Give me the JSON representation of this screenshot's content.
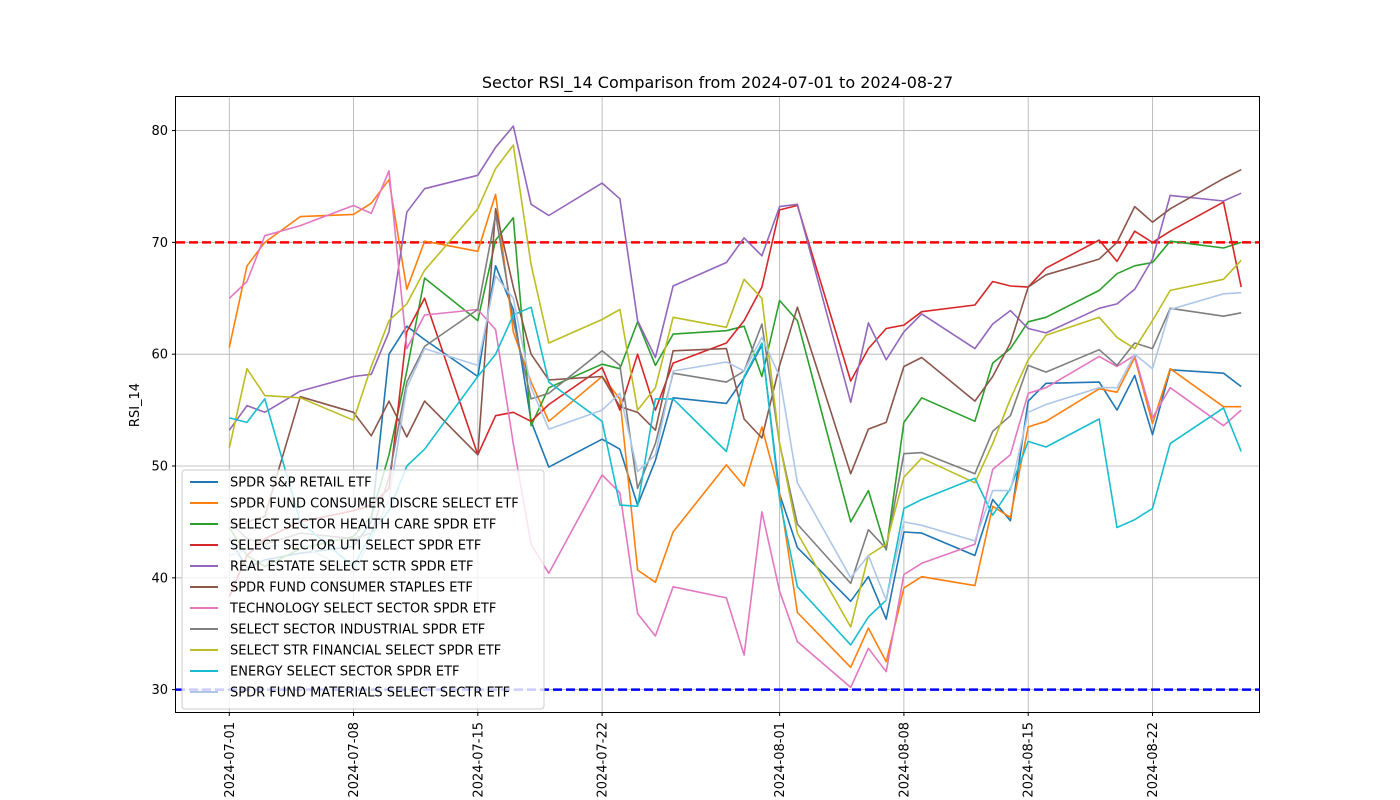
{
  "chart_data": {
    "type": "line",
    "title": "Sector RSI_14 Comparison from 2024-07-01 to 2024-08-27",
    "xlabel": "",
    "ylabel": "RSI_14",
    "xlim": [
      "2024-06-28",
      "2024-08-28"
    ],
    "ylim": [
      28,
      83
    ],
    "yticks": [
      30,
      40,
      50,
      60,
      70,
      80
    ],
    "xticks": [
      "2024-07-01",
      "2024-07-08",
      "2024-07-15",
      "2024-07-22",
      "2024-08-01",
      "2024-08-08",
      "2024-08-15",
      "2024-08-22"
    ],
    "grid": true,
    "legend_position": "lower-left",
    "reference_lines": [
      {
        "value": 70,
        "color": "#ff0000",
        "style": "dashed"
      },
      {
        "value": 30,
        "color": "#0000ff",
        "style": "dashed"
      }
    ],
    "x": [
      "2024-07-01",
      "2024-07-02",
      "2024-07-03",
      "2024-07-05",
      "2024-07-08",
      "2024-07-09",
      "2024-07-10",
      "2024-07-11",
      "2024-07-12",
      "2024-07-15",
      "2024-07-16",
      "2024-07-17",
      "2024-07-18",
      "2024-07-19",
      "2024-07-22",
      "2024-07-23",
      "2024-07-24",
      "2024-07-25",
      "2024-07-26",
      "2024-07-29",
      "2024-07-30",
      "2024-07-31",
      "2024-08-01",
      "2024-08-02",
      "2024-08-05",
      "2024-08-06",
      "2024-08-07",
      "2024-08-08",
      "2024-08-09",
      "2024-08-12",
      "2024-08-13",
      "2024-08-14",
      "2024-08-15",
      "2024-08-16",
      "2024-08-19",
      "2024-08-20",
      "2024-08-21",
      "2024-08-22",
      "2024-08-23",
      "2024-08-26",
      "2024-08-27"
    ],
    "series": [
      {
        "name": "SPDR S&P RETAIL ETF",
        "color": "#1f77b4",
        "values": [
          43.5,
          40.9,
          41.6,
          42.2,
          42.8,
          45.0,
          60.0,
          62.5,
          61.3,
          58.0,
          67.9,
          64.0,
          54.0,
          49.9,
          52.4,
          51.5,
          46.5,
          50.5,
          56.1,
          55.6,
          57.9,
          60.8,
          47.5,
          42.7,
          37.9,
          40.1,
          36.3,
          44.1,
          44.0,
          42.0,
          47.0,
          45.1,
          55.8,
          57.4,
          57.5,
          55.0,
          58.1,
          52.8,
          58.6,
          58.3,
          57.1
        ]
      },
      {
        "name": "SPDR FUND CONSUMER DISCRE SELECT ETF",
        "color": "#ff7f0e",
        "values": [
          60.6,
          67.9,
          70.0,
          72.3,
          72.5,
          73.5,
          75.6,
          65.8,
          70.1,
          69.2,
          74.3,
          62.0,
          57.5,
          54.0,
          58.0,
          56.0,
          40.7,
          39.6,
          44.1,
          50.1,
          48.2,
          53.5,
          47.5,
          36.9,
          32.0,
          35.5,
          32.5,
          39.1,
          40.1,
          39.3,
          46.4,
          45.4,
          53.5,
          54.0,
          56.9,
          56.6,
          59.7,
          53.8,
          58.7,
          55.3,
          55.3
        ]
      },
      {
        "name": "SELECT SECTOR HEALTH CARE SPDR ETF",
        "color": "#2ca02c",
        "values": [
          44.5,
          42.0,
          41.0,
          42.6,
          43.7,
          45.5,
          51.0,
          58.5,
          66.8,
          63.0,
          70.2,
          72.2,
          53.6,
          57.0,
          59.1,
          58.7,
          62.9,
          59.0,
          61.8,
          62.1,
          62.5,
          58.0,
          64.8,
          63.0,
          45.0,
          47.8,
          42.5,
          53.9,
          56.1,
          54.0,
          59.2,
          60.5,
          62.9,
          63.3,
          65.7,
          67.2,
          67.9,
          68.2,
          70.1,
          69.5,
          70.0
        ]
      },
      {
        "name": "SELECT SECTOR UTI SELECT SPDR ETF",
        "color": "#d62728",
        "values": [
          38.3,
          42.0,
          43.5,
          45.0,
          46.0,
          46.5,
          48.0,
          62.0,
          65.0,
          51.0,
          54.5,
          54.8,
          54.0,
          55.5,
          58.8,
          55.0,
          60.0,
          55.0,
          59.2,
          61.0,
          63.0,
          66.0,
          72.9,
          73.3,
          57.6,
          60.5,
          62.3,
          62.6,
          63.8,
          64.4,
          66.5,
          66.1,
          66.0,
          67.7,
          70.2,
          68.3,
          71.0,
          70.0,
          71.0,
          73.6,
          66.0
        ]
      },
      {
        "name": "REAL ESTATE SELECT SCTR SPDR ETF",
        "color": "#9467bd",
        "values": [
          53.2,
          55.4,
          54.8,
          56.7,
          58.0,
          58.2,
          62.0,
          72.7,
          74.8,
          76.0,
          78.5,
          80.4,
          73.4,
          72.4,
          75.3,
          73.9,
          63.0,
          59.7,
          66.1,
          68.2,
          70.4,
          68.8,
          73.2,
          73.4,
          55.7,
          62.8,
          59.5,
          62.0,
          63.6,
          60.5,
          62.7,
          63.9,
          62.3,
          61.9,
          64.1,
          64.5,
          65.8,
          68.5,
          74.2,
          73.7,
          74.4
        ]
      },
      {
        "name": "SPDR FUND CONSUMER STAPLES ETF",
        "color": "#8c564b",
        "values": [
          44.5,
          45.0,
          45.5,
          56.2,
          54.8,
          52.7,
          55.8,
          52.6,
          55.8,
          51.0,
          73.0,
          66.0,
          60.0,
          57.7,
          58.0,
          55.3,
          54.8,
          53.2,
          60.3,
          60.5,
          54.2,
          52.5,
          59.0,
          64.2,
          49.3,
          53.3,
          53.9,
          58.9,
          59.7,
          55.8,
          58.0,
          61.0,
          66.0,
          67.1,
          68.5,
          70.0,
          73.2,
          71.8,
          73.0,
          75.7,
          76.5
        ]
      },
      {
        "name": "TECHNOLOGY SELECT SECTOR SPDR ETF",
        "color": "#e377c2",
        "values": [
          65.0,
          66.5,
          70.6,
          71.5,
          73.3,
          72.6,
          76.4,
          60.5,
          63.5,
          64.0,
          62.2,
          52.0,
          43.0,
          40.4,
          49.2,
          47.6,
          36.8,
          34.8,
          39.2,
          38.2,
          33.1,
          45.9,
          38.8,
          34.3,
          30.2,
          33.7,
          31.6,
          40.3,
          41.3,
          43.0,
          49.7,
          51.0,
          56.5,
          57.0,
          59.8,
          58.9,
          59.9,
          54.3,
          57.0,
          53.6,
          55.0
        ]
      },
      {
        "name": "SELECT SECTOR INDUSTRIAL SPDR ETF",
        "color": "#7f7f7f",
        "values": [
          45.0,
          43.5,
          43.0,
          44.0,
          43.5,
          44.0,
          49.0,
          57.5,
          60.7,
          64.0,
          72.5,
          63.0,
          56.0,
          56.5,
          60.3,
          59.0,
          48.0,
          52.0,
          58.3,
          57.5,
          58.5,
          62.7,
          52.0,
          44.8,
          39.5,
          44.3,
          42.6,
          51.1,
          51.2,
          49.3,
          53.1,
          54.5,
          59.0,
          58.4,
          60.4,
          59.0,
          61.0,
          60.5,
          64.1,
          63.4,
          63.7
        ]
      },
      {
        "name": "SELECT STR FINANCIAL SELECT SPDR ETF",
        "color": "#bcbd22",
        "values": [
          51.6,
          58.7,
          56.3,
          56.1,
          54.1,
          58.9,
          63.0,
          64.5,
          67.5,
          73.0,
          76.6,
          78.7,
          68.0,
          61.0,
          63.1,
          64.0,
          55.0,
          57.0,
          63.3,
          62.4,
          66.7,
          65.0,
          52.0,
          44.0,
          35.6,
          42.0,
          43.0,
          49.0,
          50.7,
          48.5,
          52.0,
          56.0,
          59.5,
          61.7,
          63.3,
          61.5,
          60.5,
          63.0,
          65.7,
          66.7,
          68.4
        ]
      },
      {
        "name": "ENERGY SELECT SECTOR SPDR ETF",
        "color": "#17becf",
        "values": [
          54.3,
          53.9,
          56.0,
          45.0,
          41.0,
          44.0,
          46.0,
          50.0,
          51.5,
          58.0,
          60.0,
          63.5,
          64.2,
          57.5,
          54.0,
          46.5,
          46.4,
          56.0,
          56.0,
          51.3,
          58.0,
          61.0,
          47.0,
          39.2,
          34.0,
          36.5,
          38.0,
          46.2,
          47.0,
          48.9,
          45.6,
          48.0,
          52.2,
          51.7,
          54.2,
          44.5,
          45.2,
          46.2,
          52.0,
          55.2,
          51.3
        ]
      },
      {
        "name": "SPDR FUND MATERIALS SELECT SECTR ETF",
        "color": "#aec7e8",
        "values": [
          42.0,
          42.5,
          42.8,
          43.0,
          40.5,
          43.5,
          47.0,
          57.0,
          60.5,
          59.0,
          67.0,
          65.0,
          57.0,
          53.3,
          55.0,
          56.5,
          49.5,
          51.0,
          58.5,
          59.3,
          58.5,
          61.5,
          58.0,
          48.5,
          40.0,
          42.0,
          38.0,
          45.0,
          44.7,
          43.3,
          47.8,
          47.8,
          54.8,
          55.5,
          57.0,
          57.0,
          60.0,
          58.7,
          64.0,
          65.4,
          65.5
        ]
      }
    ]
  }
}
